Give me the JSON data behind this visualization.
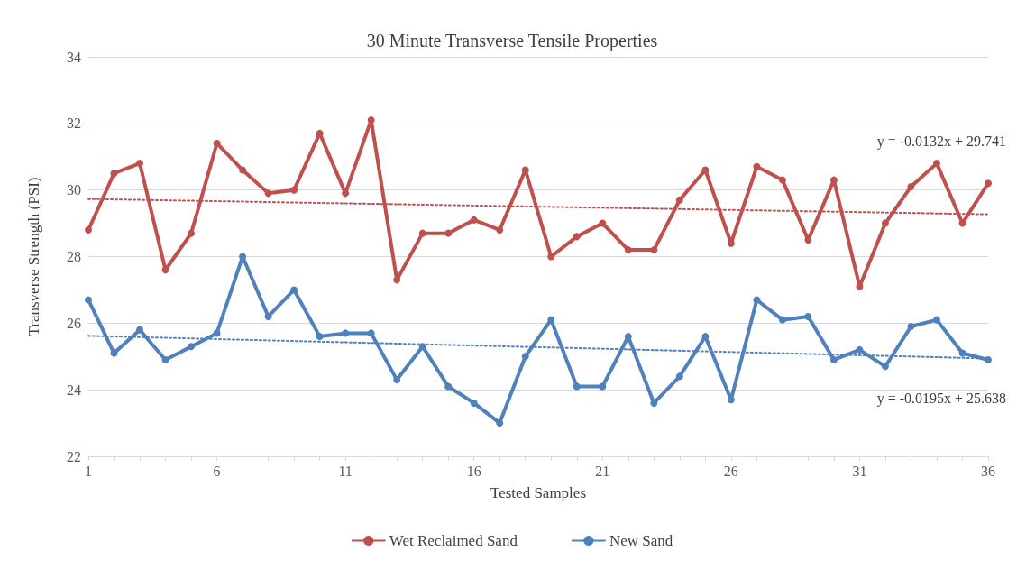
{
  "chart_data": {
    "type": "line",
    "title": "30 Minute Transverse Tensile Properties",
    "xlabel": "Tested Samples",
    "ylabel": "Transverse Strength (PSI)",
    "x": [
      1,
      2,
      3,
      4,
      5,
      6,
      7,
      8,
      9,
      10,
      11,
      12,
      13,
      14,
      15,
      16,
      17,
      18,
      19,
      20,
      21,
      22,
      23,
      24,
      25,
      26,
      27,
      28,
      29,
      30,
      31,
      32,
      33,
      34,
      35,
      36
    ],
    "series": [
      {
        "name": "Wet Reclaimed Sand",
        "color": "#c0504d",
        "marker": "circle",
        "line_style": "solid",
        "values": [
          28.8,
          30.5,
          30.8,
          27.6,
          28.7,
          31.4,
          30.6,
          29.9,
          30.0,
          31.7,
          29.9,
          32.1,
          27.3,
          28.7,
          28.7,
          29.1,
          28.8,
          30.6,
          28.0,
          28.6,
          29.0,
          28.2,
          28.2,
          29.7,
          30.6,
          28.4,
          30.7,
          30.3,
          28.5,
          30.3,
          27.1,
          29.0,
          30.1,
          30.8,
          29.0,
          30.2
        ]
      },
      {
        "name": "New Sand",
        "color": "#4f81bd",
        "marker": "circle",
        "line_style": "solid",
        "values": [
          26.7,
          25.1,
          25.8,
          24.9,
          25.3,
          25.7,
          28.0,
          26.2,
          27.0,
          25.6,
          25.7,
          25.7,
          24.3,
          25.3,
          24.1,
          23.6,
          23.0,
          25.0,
          26.1,
          24.1,
          24.1,
          25.6,
          23.6,
          24.4,
          25.6,
          23.7,
          26.7,
          26.1,
          26.2,
          24.9,
          25.2,
          24.7,
          25.9,
          26.1,
          25.1,
          24.9
        ]
      },
      {
        "color": "#c0504d",
        "marker": "none",
        "line_style": "dotted",
        "values": [
          29.73,
          null,
          null,
          null,
          null,
          null,
          null,
          null,
          null,
          null,
          null,
          null,
          null,
          null,
          null,
          null,
          null,
          null,
          null,
          null,
          null,
          null,
          null,
          null,
          null,
          null,
          null,
          null,
          null,
          null,
          null,
          null,
          null,
          null,
          null,
          29.27
        ]
      },
      {
        "color": "#4f81bd",
        "marker": "none",
        "line_style": "dotted",
        "values": [
          25.62,
          null,
          null,
          null,
          null,
          null,
          null,
          null,
          null,
          null,
          null,
          null,
          null,
          null,
          null,
          null,
          null,
          null,
          null,
          null,
          null,
          null,
          null,
          null,
          null,
          null,
          null,
          null,
          null,
          null,
          null,
          null,
          null,
          null,
          null,
          24.94
        ]
      }
    ],
    "annotations": [
      "y = -0.0132x + 29.741",
      "y = -0.0195x + 25.638"
    ],
    "xlim": [
      1,
      36
    ],
    "xticks": [
      1,
      {
        "value": 2,
        "label": null
      },
      {
        "value": 3,
        "label": null
      },
      {
        "value": 4,
        "label": null
      },
      {
        "value": 5,
        "label": null
      },
      6,
      {
        "value": 7,
        "label": null
      },
      {
        "value": 8,
        "label": null
      },
      {
        "value": 9,
        "label": null
      },
      {
        "value": 10,
        "label": null
      },
      11,
      {
        "value": 12,
        "label": null
      },
      {
        "value": 13,
        "label": null
      },
      {
        "value": 14,
        "label": null
      },
      {
        "value": 15,
        "label": null
      },
      16,
      {
        "value": 17,
        "label": null
      },
      {
        "value": 18,
        "label": null
      },
      {
        "value": 19,
        "label": null
      },
      {
        "value": 20,
        "label": null
      },
      21,
      {
        "value": 22,
        "label": null
      },
      {
        "value": 23,
        "label": null
      },
      {
        "value": 24,
        "label": null
      },
      {
        "value": 25,
        "label": null
      },
      26,
      {
        "value": 27,
        "label": null
      },
      {
        "value": 28,
        "label": null
      },
      {
        "value": 29,
        "label": null
      },
      {
        "value": 30,
        "label": null
      },
      31,
      {
        "value": 32,
        "label": null
      },
      {
        "value": 33,
        "label": null
      },
      {
        "value": 34,
        "label": null
      },
      {
        "value": 35,
        "label": null
      },
      36
    ],
    "ylim": [
      22,
      34
    ],
    "yticks": [
      22,
      24,
      26,
      28,
      30,
      32,
      34
    ],
    "grid": "y",
    "legend": "bottom"
  }
}
